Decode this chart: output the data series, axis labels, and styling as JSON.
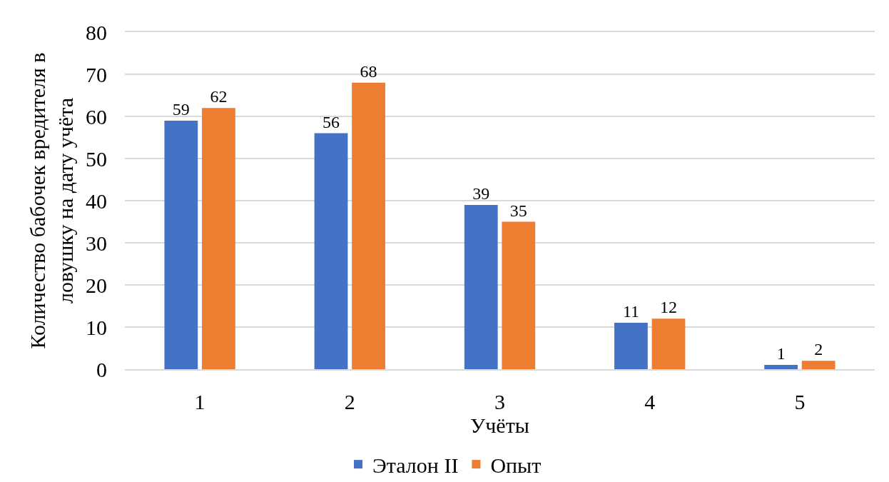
{
  "chart_data": {
    "type": "bar",
    "xlabel": "Учёты",
    "ylabel": "Количество бабочек вредителя в ловушку на дату учёта",
    "categories": [
      "1",
      "2",
      "3",
      "4",
      "5"
    ],
    "series": [
      {
        "name": "Эталон II",
        "color": "#4472c4",
        "values": [
          59,
          56,
          39,
          11,
          1
        ]
      },
      {
        "name": "Опыт",
        "color": "#ed7d31",
        "values": [
          62,
          68,
          35,
          12,
          2
        ]
      }
    ],
    "ylim": [
      0,
      80
    ],
    "yticks": [
      0,
      10,
      20,
      30,
      40,
      50,
      60,
      70,
      80
    ],
    "grid": "y",
    "legend": "bottom",
    "data_labels": true
  }
}
